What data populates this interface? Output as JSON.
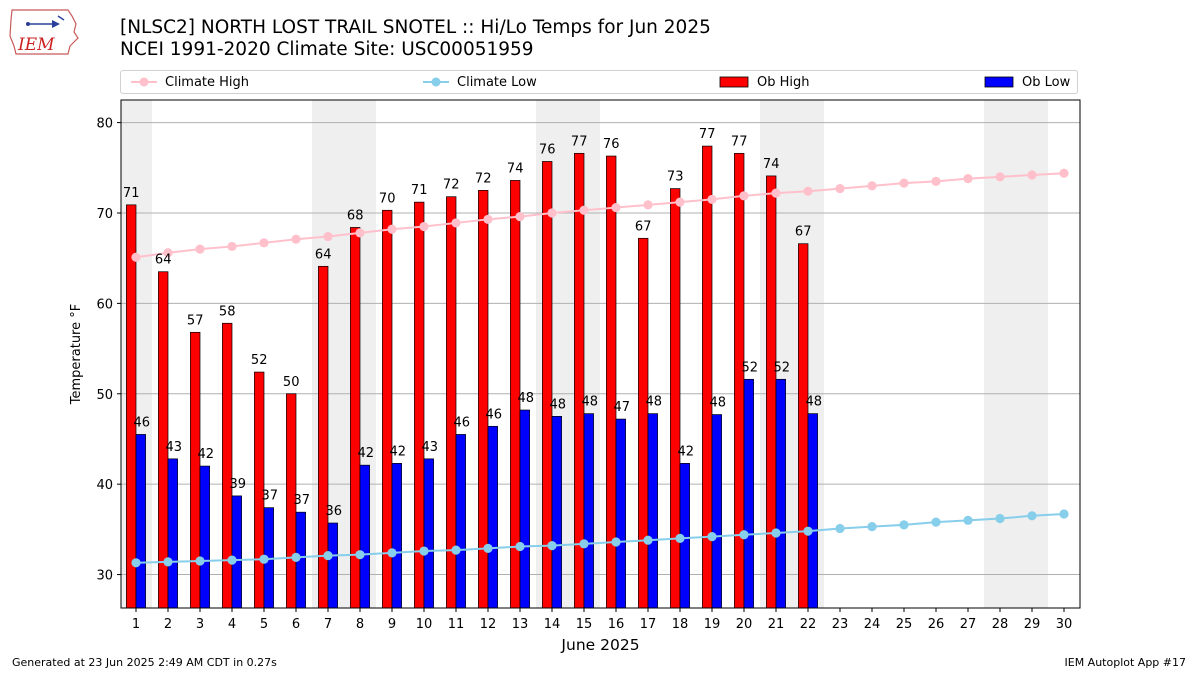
{
  "header": {
    "logo_text": "IEM",
    "title_line1": "[NLSC2] NORTH LOST TRAIL SNOTEL :: Hi/Lo Temps for Jun 2025",
    "title_line2": "NCEI 1991-2020 Climate Site: USC00051959"
  },
  "legend": {
    "items": [
      {
        "label": "Climate High",
        "color": "#ffc0cb",
        "kind": "line"
      },
      {
        "label": "Climate Low",
        "color": "#87ceeb",
        "kind": "line"
      },
      {
        "label": "Ob High",
        "color": "#ff0000",
        "kind": "box"
      },
      {
        "label": "Ob Low",
        "color": "#0000ff",
        "kind": "box"
      }
    ]
  },
  "footer": {
    "left": "Generated at 23 Jun 2025 2:49 AM CDT in 0.27s",
    "right": "IEM Autoplot App #17"
  },
  "chart_data": {
    "type": "bar",
    "title": "[NLSC2] NORTH LOST TRAIL SNOTEL :: Hi/Lo Temps for Jun 2025",
    "xlabel": "June 2025",
    "ylabel": "Temperature °F",
    "ylim": [
      26.3,
      82.5
    ],
    "yticks": [
      30,
      40,
      50,
      60,
      70,
      80
    ],
    "days": [
      1,
      2,
      3,
      4,
      5,
      6,
      7,
      8,
      9,
      10,
      11,
      12,
      13,
      14,
      15,
      16,
      17,
      18,
      19,
      20,
      21,
      22,
      23,
      24,
      25,
      26,
      27,
      28,
      29,
      30
    ],
    "weekend_days": [
      1,
      7,
      8,
      14,
      15,
      21,
      22,
      28,
      29
    ],
    "grid": true,
    "series": [
      {
        "name": "Ob High",
        "color": "#ff0000",
        "values": [
          70.9,
          63.5,
          56.8,
          57.8,
          52.4,
          50.0,
          64.1,
          68.4,
          70.3,
          71.2,
          71.8,
          72.5,
          73.6,
          75.7,
          76.6,
          76.3,
          67.2,
          72.7,
          77.4,
          76.6,
          74.1,
          66.6
        ],
        "labels": [
          "71",
          "64",
          "57",
          "58",
          "52",
          "50",
          "64",
          "68",
          "70",
          "71",
          "72",
          "72",
          "74",
          "76",
          "77",
          "76",
          "67",
          "73",
          "77",
          "77",
          "74",
          "67"
        ]
      },
      {
        "name": "Ob Low",
        "color": "#0000ff",
        "values": [
          45.5,
          42.8,
          42.0,
          38.7,
          37.4,
          36.9,
          35.7,
          42.1,
          42.3,
          42.8,
          45.5,
          46.4,
          48.2,
          47.5,
          47.8,
          47.2,
          47.8,
          42.3,
          47.7,
          51.6,
          51.6,
          47.8
        ],
        "labels": [
          "46",
          "43",
          "42",
          "39",
          "37",
          "37",
          "36",
          "42",
          "42",
          "43",
          "46",
          "46",
          "48",
          "48",
          "48",
          "47",
          "48",
          "42",
          "48",
          "52",
          "52",
          "48"
        ]
      },
      {
        "name": "Climate High",
        "color": "#ffc0cb",
        "values": [
          65.1,
          65.6,
          66.0,
          66.3,
          66.7,
          67.1,
          67.4,
          67.8,
          68.2,
          68.5,
          68.9,
          69.3,
          69.6,
          70.0,
          70.3,
          70.6,
          70.9,
          71.2,
          71.5,
          71.9,
          72.2,
          72.4,
          72.7,
          73.0,
          73.3,
          73.5,
          73.8,
          74.0,
          74.2,
          74.4
        ]
      },
      {
        "name": "Climate Low",
        "color": "#87ceeb",
        "values": [
          31.3,
          31.4,
          31.5,
          31.6,
          31.7,
          31.9,
          32.1,
          32.2,
          32.4,
          32.6,
          32.7,
          32.9,
          33.1,
          33.2,
          33.4,
          33.6,
          33.8,
          34.0,
          34.2,
          34.4,
          34.6,
          34.8,
          35.1,
          35.3,
          35.5,
          35.8,
          36.0,
          36.2,
          36.5,
          36.7
        ]
      }
    ]
  }
}
